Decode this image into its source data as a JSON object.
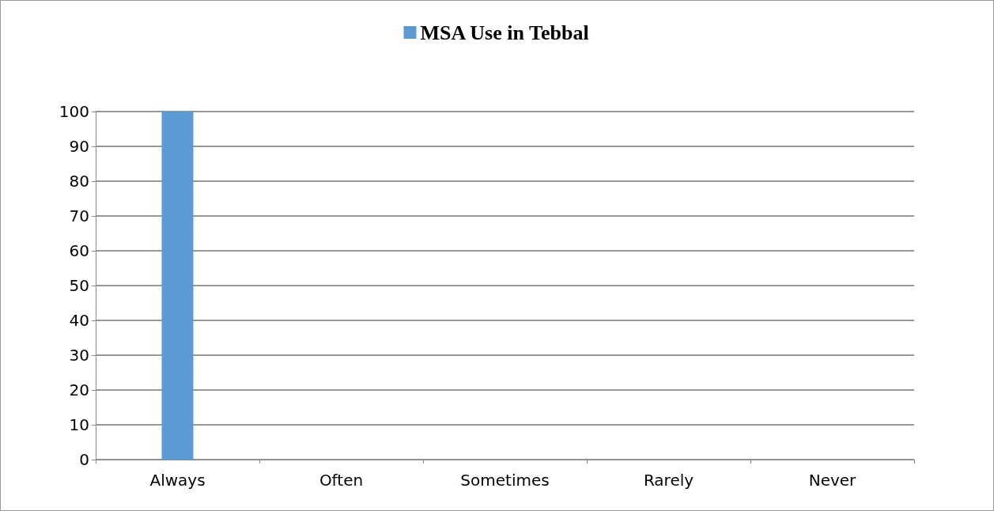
{
  "chart_data": {
    "type": "bar",
    "categories": [
      "Always",
      "Often",
      "Sometimes",
      "Rarely",
      "Never"
    ],
    "series": [
      {
        "name": "MSA Use in Tebbal",
        "color": "#5b9bd5",
        "values": [
          100,
          0,
          0,
          0,
          0
        ]
      }
    ],
    "ylim": [
      0,
      100
    ],
    "yticks": [
      0,
      10,
      20,
      30,
      40,
      50,
      60,
      70,
      80,
      90,
      100
    ],
    "grid": "y",
    "legend": "top"
  }
}
